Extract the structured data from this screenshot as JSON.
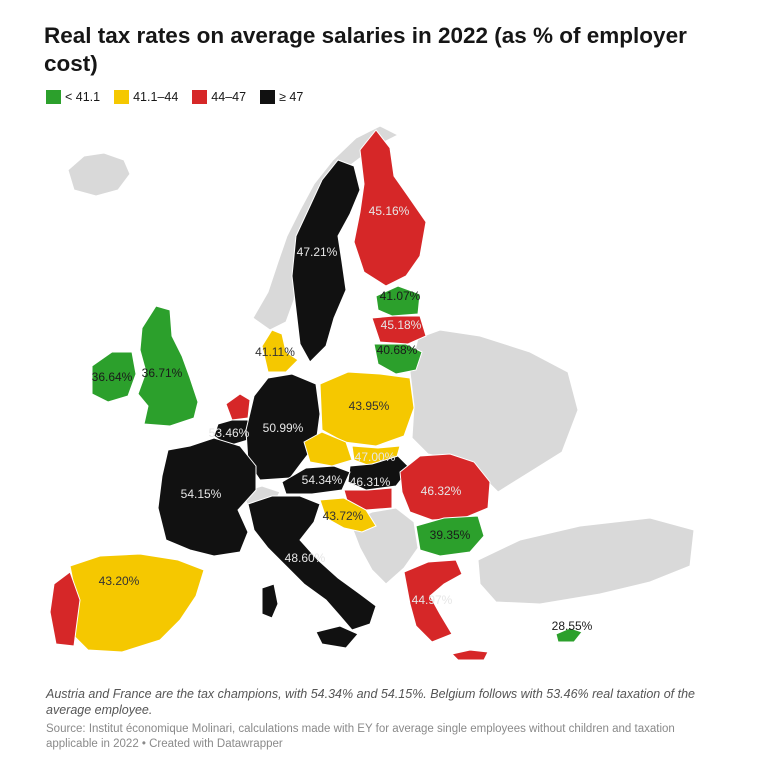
{
  "title": "Real tax rates on average salaries in  2022 (as % of employer cost)",
  "legend": [
    {
      "label": "< 41.1",
      "color": "#2ca02c"
    },
    {
      "label": "41.1–44",
      "color": "#f5c800"
    },
    {
      "label": "44–47",
      "color": "#d62728"
    },
    {
      "label": "≥ 47",
      "color": "#111111"
    }
  ],
  "colors": {
    "no_data": "#d9d9d9"
  },
  "countries": [
    {
      "name": "Ireland",
      "value": "36.64%",
      "class": "< 41.1"
    },
    {
      "name": "United Kingdom",
      "value": "36.71%",
      "class": "< 41.1"
    },
    {
      "name": "Sweden",
      "value": "47.21%",
      "class": "≥ 47"
    },
    {
      "name": "Finland",
      "value": "45.16%",
      "class": "44–47"
    },
    {
      "name": "Estonia",
      "value": "41.07%",
      "class": "< 41.1"
    },
    {
      "name": "Latvia",
      "value": "45.18%",
      "class": "44–47"
    },
    {
      "name": "Lithuania",
      "value": "40.68%",
      "class": "< 41.1"
    },
    {
      "name": "Denmark",
      "value": "41.11%",
      "class": "41.1–44"
    },
    {
      "name": "Netherlands",
      "value": "",
      "class": "44–47"
    },
    {
      "name": "Belgium",
      "value": "53.46%",
      "class": "≥ 47"
    },
    {
      "name": "Germany",
      "value": "50.99%",
      "class": "≥ 47"
    },
    {
      "name": "Poland",
      "value": "43.95%",
      "class": "41.1–44"
    },
    {
      "name": "Czechia",
      "value": "",
      "class": "41.1–44"
    },
    {
      "name": "Slovakia",
      "value": "",
      "class": "41.1–44"
    },
    {
      "name": "Hungary",
      "value": "47.00%",
      "class": "≥ 47"
    },
    {
      "name": "Austria",
      "value": "54.34%",
      "class": "≥ 47"
    },
    {
      "name": "France",
      "value": "54.15%",
      "class": "≥ 47"
    },
    {
      "name": "Slovenia",
      "value": "46.31%",
      "class": "44–47"
    },
    {
      "name": "Croatia",
      "value": "43.72%",
      "class": "41.1–44"
    },
    {
      "name": "Romania",
      "value": "46.32%",
      "class": "44–47"
    },
    {
      "name": "Bulgaria",
      "value": "39.35%",
      "class": "< 41.1"
    },
    {
      "name": "Italy",
      "value": "48.60%",
      "class": "≥ 47"
    },
    {
      "name": "Spain",
      "value": "43.20%",
      "class": "41.1–44"
    },
    {
      "name": "Portugal",
      "value": "",
      "class": "44–47"
    },
    {
      "name": "Greece",
      "value": "44.97%",
      "class": "44–47"
    },
    {
      "name": "Cyprus",
      "value": "28.55%",
      "class": "< 41.1"
    }
  ],
  "description": "Austria and France are the tax champions, with 54.34% and 54.15%. Belgium follows with 53.46% real taxation of the average employee.",
  "source": "Source: Institut économique Molinari, calculations made with EY for average single employees without children and taxation applicable in 2022 • Created with Datawrapper"
}
